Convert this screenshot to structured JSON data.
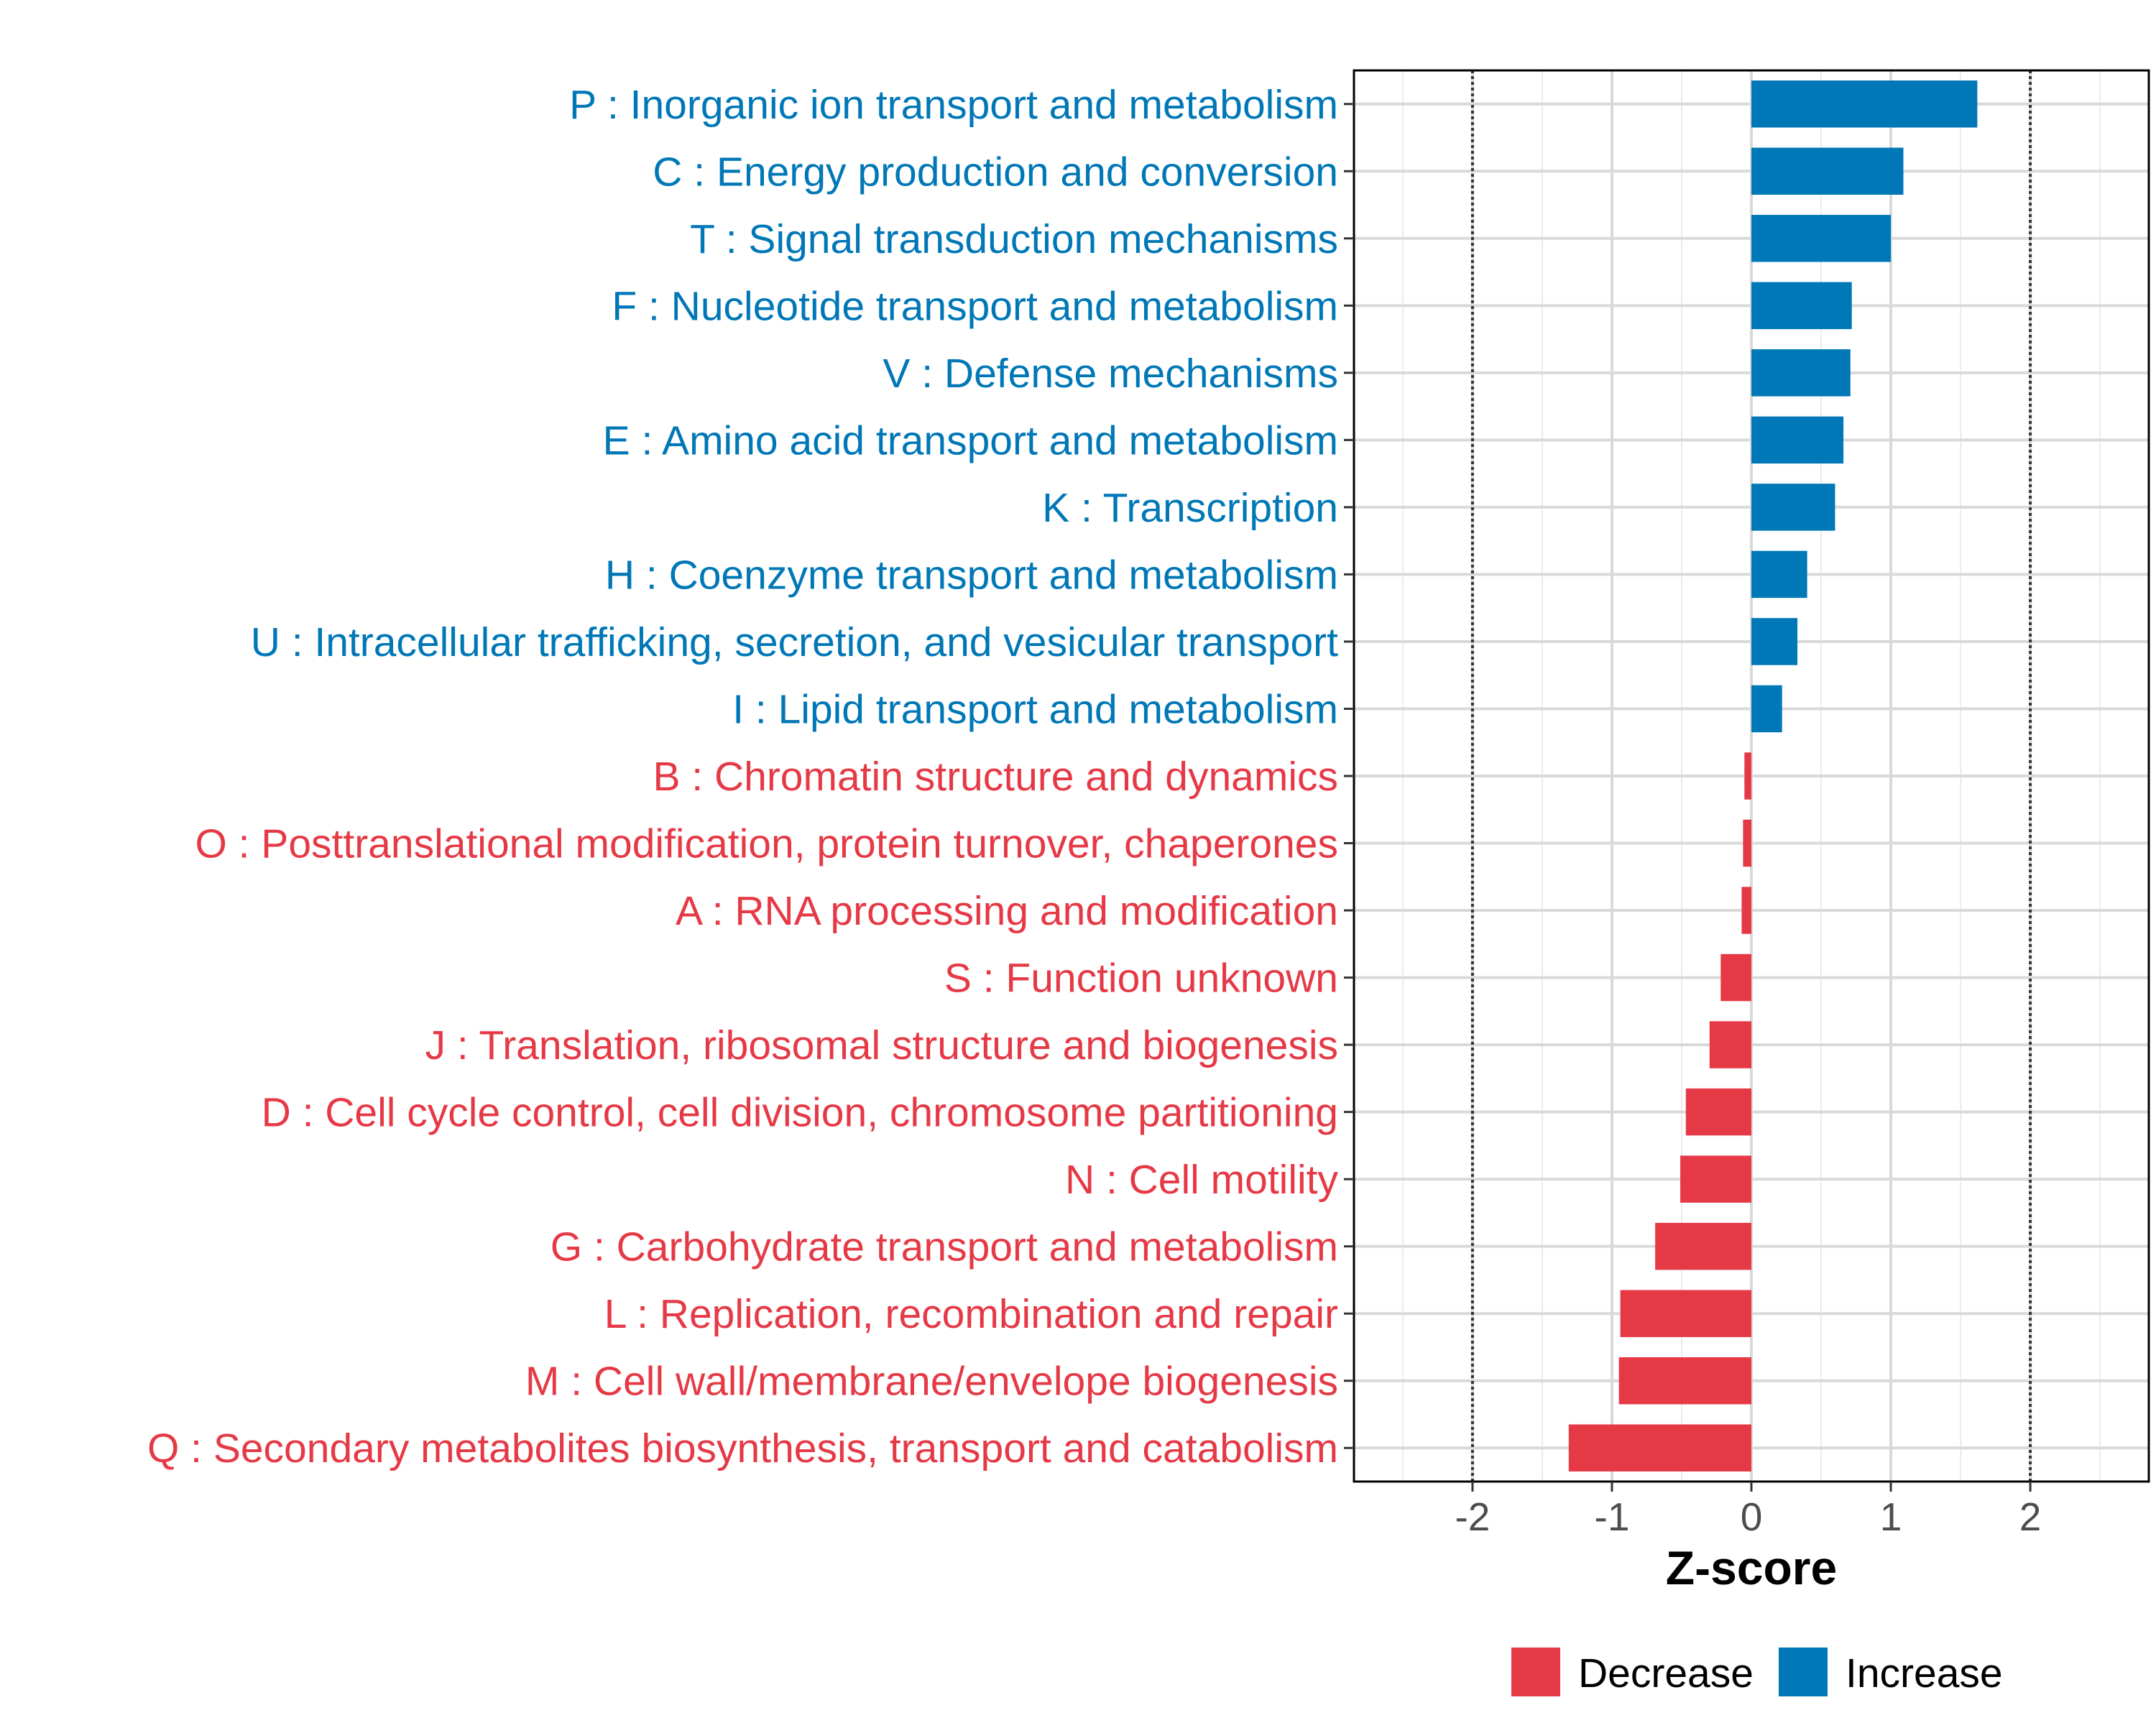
{
  "chart_data": {
    "type": "bar",
    "orientation": "horizontal",
    "xlabel": "Z-score",
    "xlim": [
      -2.85,
      2.85
    ],
    "x_ticks": [
      -2,
      -1,
      0,
      1,
      2
    ],
    "x_tick_labels": [
      "-2",
      "-1",
      "0",
      "1",
      "2"
    ],
    "reference_lines": [
      -2,
      2
    ],
    "grid": true,
    "legend_placement": "bottom",
    "categories": [
      "P : Inorganic ion transport and metabolism",
      "C : Energy production and conversion",
      "T : Signal transduction mechanisms",
      "F : Nucleotide transport and metabolism",
      "V : Defense mechanisms",
      "E : Amino acid transport and metabolism",
      "K : Transcription",
      "H : Coenzyme transport and metabolism",
      "U : Intracellular trafficking, secretion, and vesicular transport",
      "I : Lipid transport and metabolism",
      "B : Chromatin structure and dynamics",
      "O : Posttranslational modification, protein turnover, chaperones",
      "A : RNA processing and modification",
      "S : Function unknown",
      "J : Translation, ribosomal structure and biogenesis",
      "D : Cell cycle control, cell division, chromosome partitioning",
      "N : Cell motility",
      "G : Carbohydrate transport and metabolism",
      "L : Replication, recombination and repair",
      "M : Cell wall/membrane/envelope biogenesis",
      "Q : Secondary metabolites biosynthesis, transport and catabolism"
    ],
    "values": [
      1.62,
      1.09,
      1.0,
      0.72,
      0.71,
      0.66,
      0.6,
      0.4,
      0.33,
      0.22,
      -0.05,
      -0.06,
      -0.07,
      -0.22,
      -0.3,
      -0.47,
      -0.51,
      -0.69,
      -0.94,
      -0.95,
      -1.31
    ],
    "groups": [
      "Increase",
      "Increase",
      "Increase",
      "Increase",
      "Increase",
      "Increase",
      "Increase",
      "Increase",
      "Increase",
      "Increase",
      "Decrease",
      "Decrease",
      "Decrease",
      "Decrease",
      "Decrease",
      "Decrease",
      "Decrease",
      "Decrease",
      "Decrease",
      "Decrease",
      "Decrease"
    ],
    "legend": [
      {
        "name": "Decrease",
        "color": "#e63946"
      },
      {
        "name": "Increase",
        "color": "#0077b6"
      }
    ]
  }
}
